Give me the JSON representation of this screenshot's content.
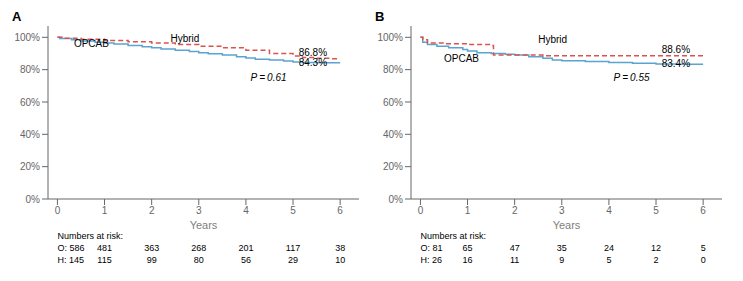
{
  "chart_data": [
    {
      "type": "step",
      "title": "A",
      "x_label": "Years",
      "xlim": [
        -0.2,
        6.4
      ],
      "ylim": [
        0,
        107
      ],
      "xticks": [
        0,
        1,
        2,
        3,
        4,
        5,
        6
      ],
      "yticks": [
        {
          "value": 0,
          "label": "0%"
        },
        {
          "value": 20,
          "label": "20%"
        },
        {
          "value": 40,
          "label": "40%"
        },
        {
          "value": 60,
          "label": "60%"
        },
        {
          "value": 80,
          "label": "80%"
        },
        {
          "value": 100,
          "label": "100%"
        }
      ],
      "grid": false,
      "series": [
        {
          "name": "OPCAB",
          "color": "#5ba3d0",
          "line_style": "solid",
          "x": [
            0,
            0.05,
            0.3,
            0.5,
            0.8,
            1.0,
            1.2,
            1.5,
            1.8,
            2.0,
            2.2,
            2.5,
            2.8,
            3.0,
            3.2,
            3.5,
            3.8,
            4.0,
            4.2,
            4.5,
            4.8,
            5.0,
            5.2,
            5.5,
            5.8,
            6.0
          ],
          "values": [
            100,
            99.2,
            98.5,
            97.8,
            97.0,
            96.5,
            95.8,
            95.0,
            94.2,
            93.5,
            92.8,
            92.0,
            91.2,
            90.5,
            89.8,
            89.0,
            88.0,
            87.2,
            86.5,
            86.0,
            85.3,
            84.8,
            84.5,
            84.3,
            84.3,
            84.3
          ]
        },
        {
          "name": "Hybrid",
          "color": "#d9534f",
          "line_style": "dashed",
          "x": [
            0,
            0.1,
            0.5,
            1.0,
            1.5,
            2.0,
            2.5,
            3.0,
            3.5,
            4.0,
            4.5,
            5.0,
            5.2,
            5.5,
            5.8,
            6.0
          ],
          "values": [
            100,
            99.5,
            98.8,
            98.0,
            97.2,
            96.5,
            95.5,
            94.5,
            93.5,
            92.0,
            90.0,
            88.5,
            87.5,
            87.0,
            86.8,
            86.8
          ]
        }
      ],
      "annotations": [
        {
          "text": "Hybrid",
          "x": 2.4,
          "y": 97.0
        },
        {
          "text": "OPCAB",
          "x": 0.35,
          "y": 94.0
        },
        {
          "text": "86.8%",
          "x": 5.12,
          "y": 88.5
        },
        {
          "text": "84.3%",
          "x": 5.12,
          "y": 82.0
        }
      ],
      "p_value": {
        "text": "P = 0.61",
        "x": 4.1,
        "y": 73.0
      },
      "risk_table": {
        "title": "Numbers at risk:",
        "rows": [
          [
            "O: 586",
            "481",
            "363",
            "268",
            "201",
            "117",
            "38"
          ],
          [
            "H: 145",
            "115",
            "99",
            "80",
            "56",
            "29",
            "10"
          ]
        ]
      }
    },
    {
      "type": "step",
      "title": "B",
      "x_label": "Years",
      "xlim": [
        -0.2,
        6.4
      ],
      "ylim": [
        0,
        107
      ],
      "xticks": [
        0,
        1,
        2,
        3,
        4,
        5,
        6
      ],
      "yticks": [
        {
          "value": 0,
          "label": "0%"
        },
        {
          "value": 20,
          "label": "20%"
        },
        {
          "value": 40,
          "label": "40%"
        },
        {
          "value": 60,
          "label": "60%"
        },
        {
          "value": 80,
          "label": "80%"
        },
        {
          "value": 100,
          "label": "100%"
        }
      ],
      "grid": false,
      "series": [
        {
          "name": "OPCAB",
          "color": "#5ba3d0",
          "line_style": "solid",
          "x": [
            0,
            0.05,
            0.15,
            0.35,
            0.6,
            0.9,
            1.0,
            1.2,
            1.5,
            1.8,
            2.0,
            2.3,
            2.6,
            2.8,
            3.0,
            3.5,
            4.0,
            4.5,
            5.0,
            5.5,
            6.0
          ],
          "values": [
            100,
            97.0,
            95.5,
            94.5,
            93.5,
            92.5,
            91.5,
            90.5,
            90.0,
            89.5,
            89.0,
            88.0,
            87.0,
            86.0,
            85.5,
            85.0,
            84.5,
            84.0,
            83.5,
            83.4,
            83.4
          ]
        },
        {
          "name": "Hybrid",
          "color": "#d9534f",
          "line_style": "dashed",
          "x": [
            0,
            0.05,
            0.15,
            0.5,
            1.0,
            1.5,
            1.55,
            2.0,
            2.6,
            3.0,
            3.5,
            4.0,
            4.5,
            5.0,
            5.5,
            6.0
          ],
          "values": [
            100,
            98.5,
            96.5,
            96.0,
            95.5,
            95.0,
            89.0,
            89.0,
            88.6,
            88.6,
            88.6,
            88.6,
            88.6,
            88.6,
            88.6,
            88.6
          ]
        }
      ],
      "annotations": [
        {
          "text": "Hybrid",
          "x": 2.5,
          "y": 96.5
        },
        {
          "text": "OPCAB",
          "x": 0.5,
          "y": 84.5
        },
        {
          "text": "88.6%",
          "x": 5.12,
          "y": 90.5
        },
        {
          "text": "83.4%",
          "x": 5.12,
          "y": 81.5
        }
      ],
      "p_value": {
        "text": "P = 0.55",
        "x": 4.1,
        "y": 73.0
      },
      "risk_table": {
        "title": "Numbers at risk:",
        "rows": [
          [
            "O: 81",
            "65",
            "47",
            "35",
            "24",
            "12",
            "5"
          ],
          [
            "H: 26",
            "16",
            "11",
            "9",
            "5",
            "2",
            "0"
          ]
        ]
      }
    }
  ]
}
